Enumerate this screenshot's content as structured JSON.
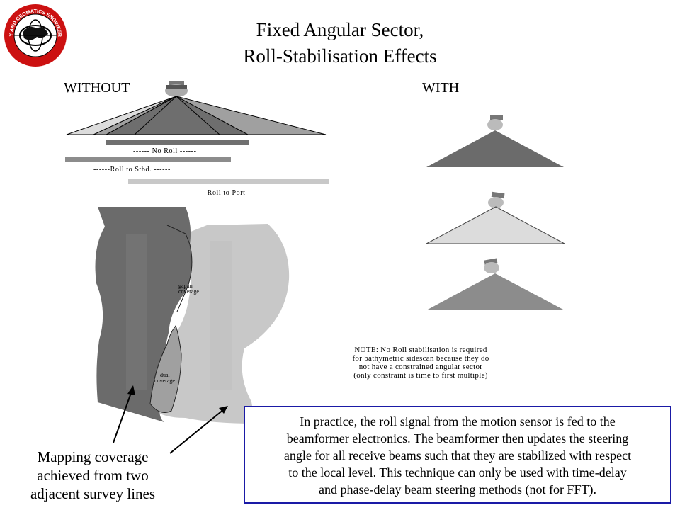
{
  "header": {
    "title_line1": "Fixed Angular Sector,",
    "title_line2": "Roll-Stabilisation Effects",
    "logo_text": "GEODESY AND GEOMATICS ENGINEERING UNB"
  },
  "columns": {
    "without": "WITHOUT",
    "with": "WITH"
  },
  "bar_labels": {
    "no_roll": "------ No  Roll ------",
    "roll_stbd": "------Roll  to  Stbd. ------",
    "roll_port": "------  Roll  to  Port ------"
  },
  "coverage_labels": {
    "gap": [
      "gap  in",
      "coverage"
    ],
    "dual": [
      "dual",
      "coverage"
    ]
  },
  "note": [
    "NOTE: No Roll stabilisation is required",
    "for bathymetric sidescan because they do",
    "not have a constrained angular sector",
    "(only constraint is time to first multiple)"
  ],
  "caption": [
    "Mapping coverage",
    "achieved from two",
    "adjacent survey lines"
  ],
  "info_box": [
    "In practice, the roll signal from the motion sensor is fed to the",
    "beamformer electronics.  The beamformer then updates the steering",
    "angle for all receive beams such that they are stabilized with respect",
    "to the local level.  This technique can only be used with time-delay",
    "and phase-delay beam steering methods (not for FFT)."
  ],
  "colors": {
    "dark_gray": "#6b6b6b",
    "mid_gray": "#8c8c8c",
    "light_gray": "#c8c8c8",
    "box_border": "#1a1aa6",
    "logo_red": "#cc1111"
  }
}
